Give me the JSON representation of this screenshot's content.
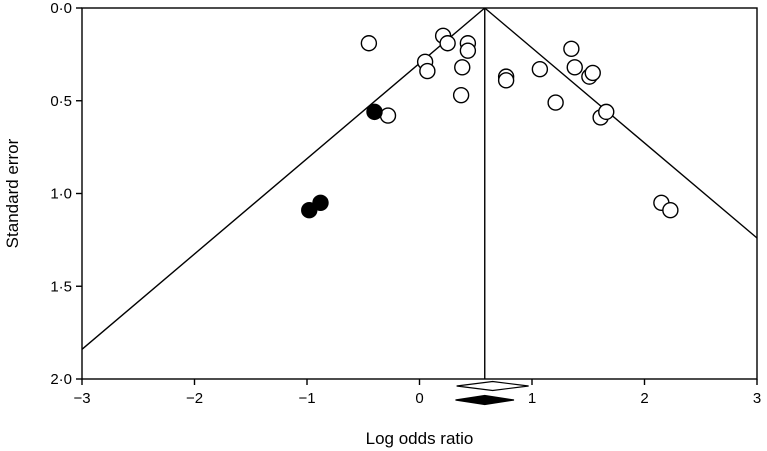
{
  "chart_data": {
    "type": "scatter",
    "title": "",
    "xlabel": "Log odds ratio",
    "ylabel": "Standard error",
    "xlim": [
      -3,
      3
    ],
    "ylim": [
      0,
      2
    ],
    "y_inverted": true,
    "grid": false,
    "x_ticks": [
      -3,
      -2,
      -1,
      0,
      1,
      2,
      3
    ],
    "x_tick_labels": [
      "−3",
      "−2",
      "−1",
      "0",
      "1",
      "2",
      "3"
    ],
    "y_ticks": [
      0,
      0.5,
      1,
      1.5,
      2
    ],
    "y_tick_labels": [
      "0·0",
      "0·5",
      "1·0",
      "1·5",
      "2·0"
    ],
    "pooled_estimate": 0.58,
    "funnel": {
      "apex": [
        0.58,
        0
      ],
      "left_end": [
        -3,
        1.84
      ],
      "right_end": [
        3,
        1.24
      ]
    },
    "series": [
      {
        "marker": "open-circle",
        "points": [
          {
            "x": -0.45,
            "y": 0.19
          },
          {
            "x": 0.05,
            "y": 0.29
          },
          {
            "x": 0.07,
            "y": 0.34
          },
          {
            "x": 0.21,
            "y": 0.15
          },
          {
            "x": 0.25,
            "y": 0.19
          },
          {
            "x": 0.38,
            "y": 0.32
          },
          {
            "x": 0.43,
            "y": 0.19
          },
          {
            "x": 0.43,
            "y": 0.23
          },
          {
            "x": 0.37,
            "y": 0.47
          },
          {
            "x": -0.28,
            "y": 0.58
          },
          {
            "x": 0.77,
            "y": 0.37
          },
          {
            "x": 0.77,
            "y": 0.39
          },
          {
            "x": 1.07,
            "y": 0.33
          },
          {
            "x": 1.21,
            "y": 0.51
          },
          {
            "x": 1.35,
            "y": 0.22
          },
          {
            "x": 1.38,
            "y": 0.32
          },
          {
            "x": 1.51,
            "y": 0.37
          },
          {
            "x": 1.54,
            "y": 0.35
          },
          {
            "x": 1.61,
            "y": 0.59
          },
          {
            "x": 1.66,
            "y": 0.56
          },
          {
            "x": 2.15,
            "y": 1.05
          },
          {
            "x": 2.23,
            "y": 1.09
          }
        ]
      },
      {
        "marker": "filled-circle",
        "points": [
          {
            "x": -0.4,
            "y": 0.56
          },
          {
            "x": -0.88,
            "y": 1.05
          },
          {
            "x": -0.98,
            "y": 1.09
          }
        ]
      }
    ],
    "summary_diamonds": [
      {
        "style": "open",
        "center": 0.65,
        "half_width": 0.32
      },
      {
        "style": "filled",
        "center": 0.58,
        "half_width": 0.26
      }
    ],
    "colors": {
      "axis": "#000000",
      "marker_fill": "#000000",
      "background": "#ffffff"
    }
  }
}
